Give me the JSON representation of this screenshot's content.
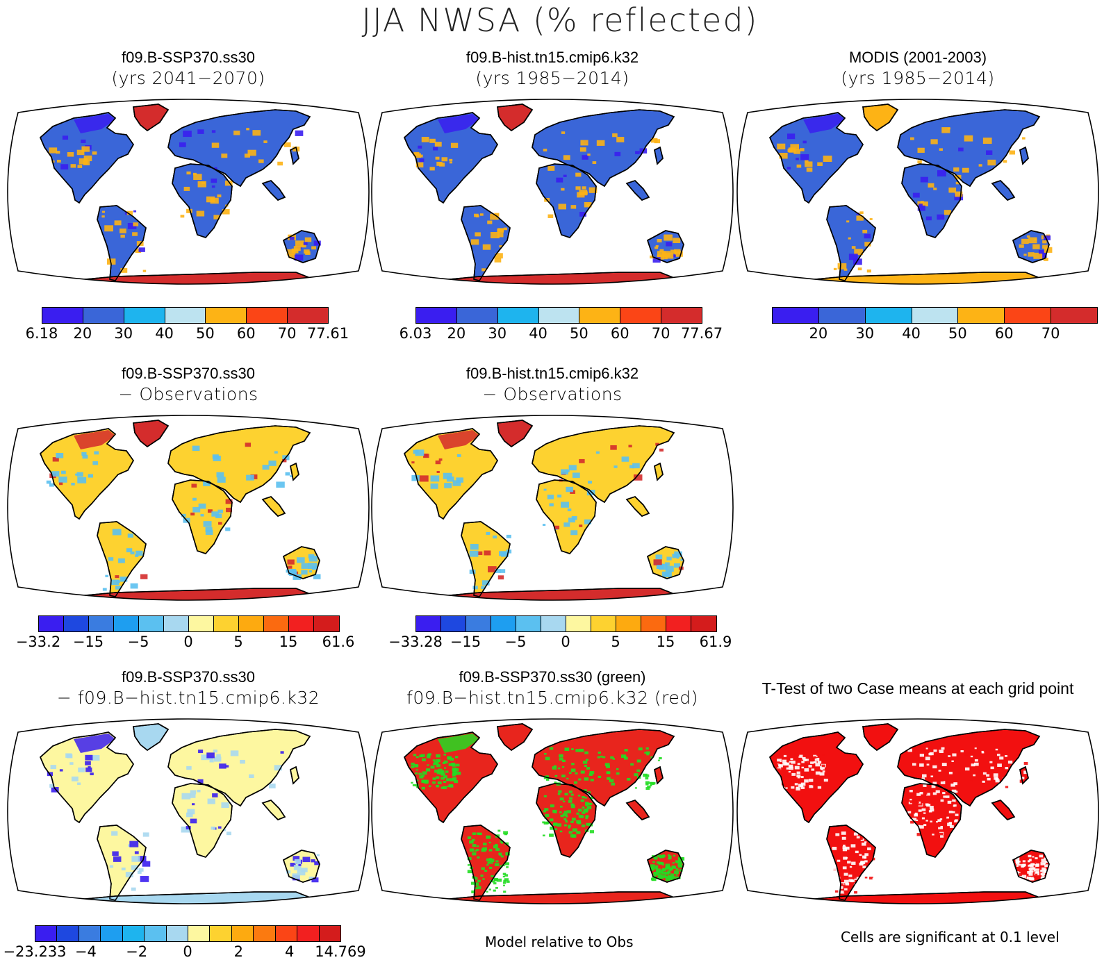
{
  "title": "JJA NWSA (% reflected)",
  "panels": {
    "p1": {
      "line1": "f09.B-SSP370.ss30",
      "line2": "(yrs 2041−2070)"
    },
    "p2": {
      "line1": "f09.B-hist.tn15.cmip6.k32",
      "line2": "(yrs 1985−2014)"
    },
    "p3": {
      "line1": "MODIS (2001-2003)",
      "line2": "(yrs 1985−2014)"
    },
    "p4": {
      "line1": "f09.B-SSP370.ss30",
      "line2": "− Observations"
    },
    "p5": {
      "line1": "f09.B-hist.tn15.cmip6.k32",
      "line2": "− Observations"
    },
    "p7": {
      "line1": "f09.B-SSP370.ss30",
      "line2": "− f09.B−hist.tn15.cmip6.k32"
    },
    "p8": {
      "line1": "f09.B-SSP370.ss30 (green)",
      "line2": "f09.B−hist.tn15.cmip6.k32 (red)"
    },
    "p9": {
      "line1": "T-Test of two Case means at each grid point"
    }
  },
  "colorbars": {
    "cb1": {
      "colors": [
        "#3a1ef0",
        "#3a66d8",
        "#1eb4ee",
        "#bde3f0",
        "#fdb315",
        "#fb4516",
        "#d42c2c"
      ],
      "labels": [
        "6.18",
        "20",
        "30",
        "40",
        "50",
        "60",
        "70",
        "77.61"
      ]
    },
    "cb2": {
      "colors": [
        "#3a1ef0",
        "#3a66d8",
        "#1eb4ee",
        "#bde3f0",
        "#fdb315",
        "#fb4516",
        "#d42c2c"
      ],
      "labels": [
        "6.03",
        "20",
        "30",
        "40",
        "50",
        "60",
        "70",
        "77.67"
      ]
    },
    "cb3": {
      "colors": [
        "#3a1ef0",
        "#3a66d8",
        "#1eb4ee",
        "#bde3f0",
        "#fdb315",
        "#fb4516",
        "#d42c2c"
      ],
      "labels": [
        "",
        "20",
        "30",
        "40",
        "50",
        "60",
        "70",
        ""
      ]
    },
    "cb4": {
      "colors": [
        "#3a1ef0",
        "#1e48e0",
        "#3a7ce0",
        "#1e9ef0",
        "#5bc0f0",
        "#a8d8f0",
        "#fdf7a0",
        "#fdd230",
        "#fdaa10",
        "#fb6a10",
        "#f22020",
        "#d41c1c"
      ],
      "labels": [
        "−33.2",
        "−15",
        "−5",
        "0",
        "5",
        "15",
        "61.6"
      ]
    },
    "cb5": {
      "colors": [
        "#3a1ef0",
        "#1e48e0",
        "#3a7ce0",
        "#1e9ef0",
        "#5bc0f0",
        "#a8d8f0",
        "#fdf7a0",
        "#fdd230",
        "#fdaa10",
        "#fb6a10",
        "#f22020",
        "#d41c1c"
      ],
      "labels": [
        "−33.28",
        "−15",
        "−5",
        "0",
        "5",
        "15",
        "61.9"
      ]
    },
    "cb7": {
      "colors": [
        "#3a1ef0",
        "#1e48e0",
        "#3a7ce0",
        "#1e9ef0",
        "#1eb4ee",
        "#5bc0f0",
        "#a8d8f0",
        "#fdf7a0",
        "#fdd230",
        "#fdaa10",
        "#fb7a10",
        "#fb4516",
        "#f22020",
        "#d41c1c"
      ],
      "labels": [
        "−23.233",
        "−4",
        "−2",
        "0",
        "2",
        "4",
        "14.769"
      ]
    }
  },
  "footnotes": {
    "model_rel": "Model relative to Obs",
    "cells_sig": "Cells are significant at 0.1 level"
  },
  "map_palettes": {
    "p1": {
      "land": "#3a66d8",
      "accent": "#fdb315",
      "polar": "#d42c2c",
      "highlat": "#3a1ef0"
    },
    "p2": {
      "land": "#3a66d8",
      "accent": "#fdb315",
      "polar": "#d42c2c",
      "highlat": "#3a1ef0"
    },
    "p3": {
      "land": "#3a66d8",
      "accent": "#fdb315",
      "polar": "#fdb315",
      "highlat": "#3a1ef0"
    },
    "p4": {
      "land": "#fdd230",
      "accent": "#5bc0f0",
      "polar": "#d42c2c",
      "highlat": "#d42c2c"
    },
    "p5": {
      "land": "#fdd230",
      "accent": "#5bc0f0",
      "polar": "#d42c2c",
      "highlat": "#d42c2c"
    },
    "p7": {
      "land": "#fdf7a0",
      "accent": "#a8d8f0",
      "polar": "#a8d8f0",
      "highlat": "#3a1ef0"
    },
    "p8": {
      "land": "#e8251d",
      "accent": "#22dd22",
      "polar": "#e8251d",
      "highlat": "#22dd22"
    },
    "p9": {
      "land": "#f21010",
      "accent": "#ffffff",
      "polar": "#f21010",
      "highlat": "#f21010"
    }
  }
}
